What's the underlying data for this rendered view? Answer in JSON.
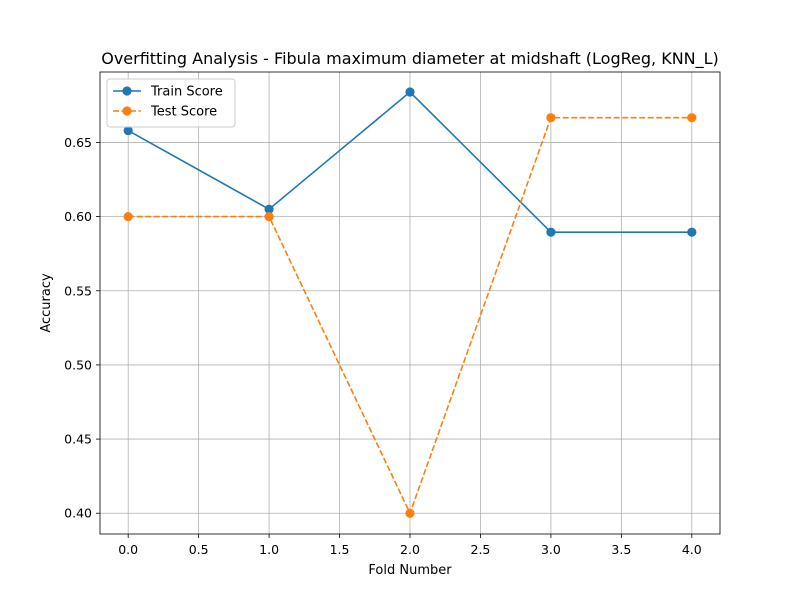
{
  "chart_data": {
    "type": "line",
    "title": "Overfitting Analysis - Fibula maximum diameter at midshaft (LogReg, KNN_L)",
    "xlabel": "Fold Number",
    "ylabel": "Accuracy",
    "x": [
      0,
      1,
      2,
      3,
      4
    ],
    "xlim": [
      -0.2,
      4.2
    ],
    "ylim": [
      0.386,
      0.6975
    ],
    "xticks": [
      0.0,
      0.5,
      1.0,
      1.5,
      2.0,
      2.5,
      3.0,
      3.5,
      4.0
    ],
    "xtick_labels": [
      "0.0",
      "0.5",
      "1.0",
      "1.5",
      "2.0",
      "2.5",
      "3.0",
      "3.5",
      "4.0"
    ],
    "yticks": [
      0.4,
      0.45,
      0.5,
      0.55,
      0.6,
      0.65
    ],
    "ytick_labels": [
      "0.40",
      "0.45",
      "0.50",
      "0.55",
      "0.60",
      "0.65"
    ],
    "grid": true,
    "legend_position": "top-left",
    "series": [
      {
        "name": "Train Score",
        "values": [
          0.658,
          0.605,
          0.684,
          0.5895,
          0.5895
        ],
        "color": "#1f77b4",
        "line_style": "solid",
        "marker": "circle"
      },
      {
        "name": "Test Score",
        "values": [
          0.6,
          0.6,
          0.4,
          0.6667,
          0.6667
        ],
        "color": "#ff7f0e",
        "line_style": "dashed",
        "marker": "circle"
      }
    ]
  }
}
